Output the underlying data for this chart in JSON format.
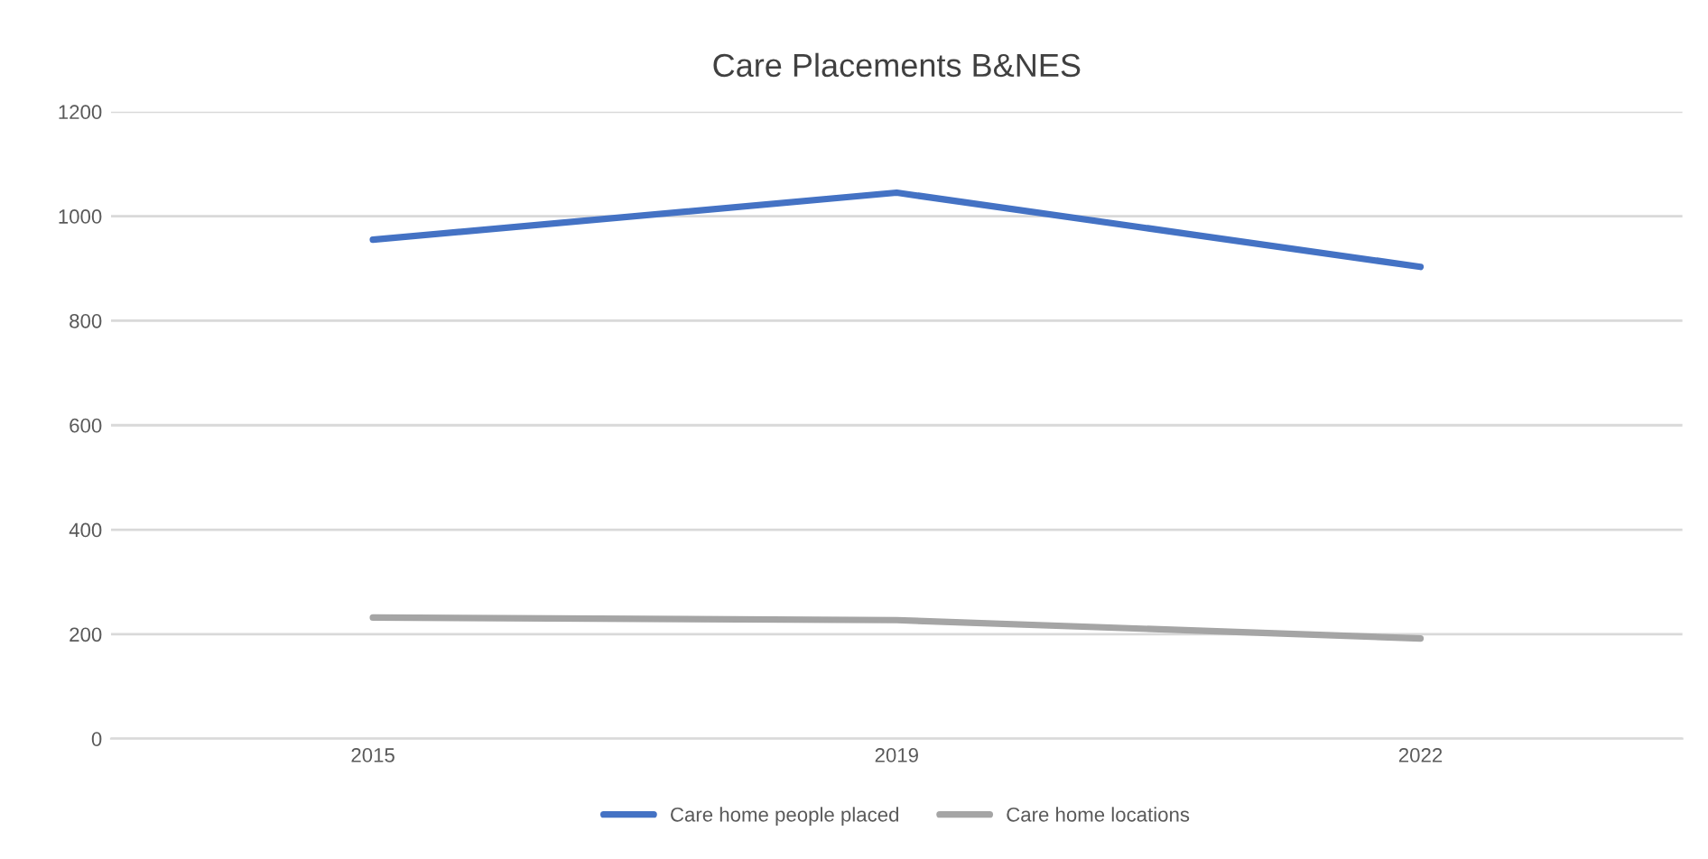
{
  "chart_data": {
    "type": "line",
    "title": "Care Placements B&NES",
    "categories": [
      "2015",
      "2019",
      "2022"
    ],
    "series": [
      {
        "name": "Care home people placed",
        "color": "#4472c4",
        "values": [
          955,
          1045,
          903
        ]
      },
      {
        "name": "Care home locations",
        "color": "#a5a5a5",
        "values": [
          232,
          227,
          192
        ]
      }
    ],
    "ylim": [
      0,
      1200
    ],
    "yticks": [
      0,
      200,
      400,
      600,
      800,
      1000,
      1200
    ],
    "grid": "y",
    "legend": "bottom",
    "marker": "none",
    "line_style": "solid"
  }
}
